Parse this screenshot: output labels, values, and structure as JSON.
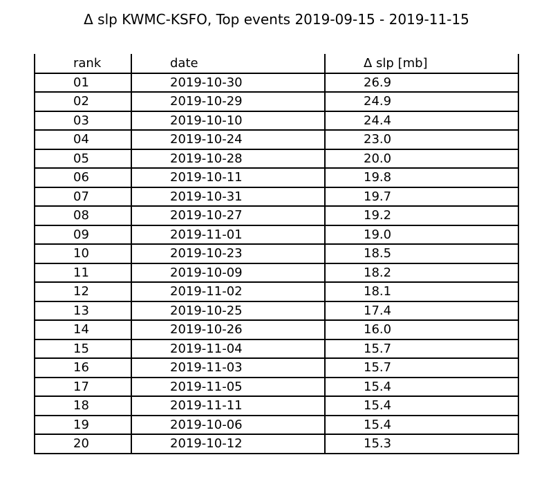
{
  "chart_data": {
    "type": "table",
    "title": "Δ slp KWMC-KSFO, Top events 2019-09-15 - 2019-11-15",
    "columns": [
      "rank",
      "date",
      "Δ slp [mb]"
    ],
    "rows": [
      [
        "01",
        "2019-10-30",
        "26.9"
      ],
      [
        "02",
        "2019-10-29",
        "24.9"
      ],
      [
        "03",
        "2019-10-10",
        "24.4"
      ],
      [
        "04",
        "2019-10-24",
        "23.0"
      ],
      [
        "05",
        "2019-10-28",
        "20.0"
      ],
      [
        "06",
        "2019-10-11",
        "19.8"
      ],
      [
        "07",
        "2019-10-31",
        "19.7"
      ],
      [
        "08",
        "2019-10-27",
        "19.2"
      ],
      [
        "09",
        "2019-11-01",
        "19.0"
      ],
      [
        "10",
        "2019-10-23",
        "18.5"
      ],
      [
        "11",
        "2019-10-09",
        "18.2"
      ],
      [
        "12",
        "2019-11-02",
        "18.1"
      ],
      [
        "13",
        "2019-10-25",
        "17.4"
      ],
      [
        "14",
        "2019-10-26",
        "16.0"
      ],
      [
        "15",
        "2019-11-04",
        "15.7"
      ],
      [
        "16",
        "2019-11-03",
        "15.7"
      ],
      [
        "17",
        "2019-11-05",
        "15.4"
      ],
      [
        "18",
        "2019-11-11",
        "15.4"
      ],
      [
        "19",
        "2019-10-06",
        "15.4"
      ],
      [
        "20",
        "2019-10-12",
        "15.3"
      ]
    ]
  }
}
